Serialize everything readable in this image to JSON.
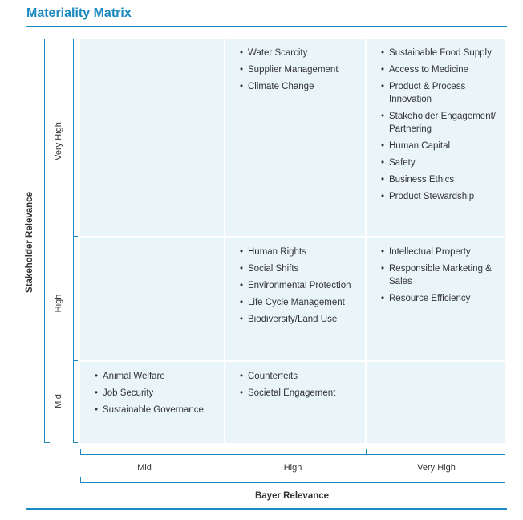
{
  "title": "Materiality Matrix",
  "axes": {
    "y_title": "Stakeholder Relevance",
    "x_title": "Bayer Relevance",
    "y_levels": [
      "Very High",
      "High",
      "Mid"
    ],
    "x_levels": [
      "Mid",
      "High",
      "Very High"
    ]
  },
  "cells": {
    "very_high_mid": [],
    "very_high_high": [
      "Water Scarcity",
      "Supplier Management",
      "Climate Change"
    ],
    "very_high_very_high": [
      "Sustainable Food Supply",
      "Access to Medicine",
      "Product & Process Innovation",
      "Stakeholder Engagement/ Partnering",
      "Human Capital",
      "Safety",
      "Business Ethics",
      "Product Stewardship"
    ],
    "high_mid": [],
    "high_high": [
      "Human Rights",
      "Social Shifts",
      "Environmental Protection",
      "Life Cycle Management",
      "Biodiversity/Land Use"
    ],
    "high_very_high": [
      "Intellectual Property",
      "Responsible Marketing & Sales",
      "Resource Efficiency"
    ],
    "mid_mid": [
      "Animal Welfare",
      "Job Security",
      "Sustainable Governance"
    ],
    "mid_high": [
      "Counterfeits",
      "Societal Engagement"
    ],
    "mid_very_high": []
  },
  "colors": {
    "accent": "#1a8ac0",
    "cell_bg": "#eaf5fa",
    "text": "#333333"
  }
}
